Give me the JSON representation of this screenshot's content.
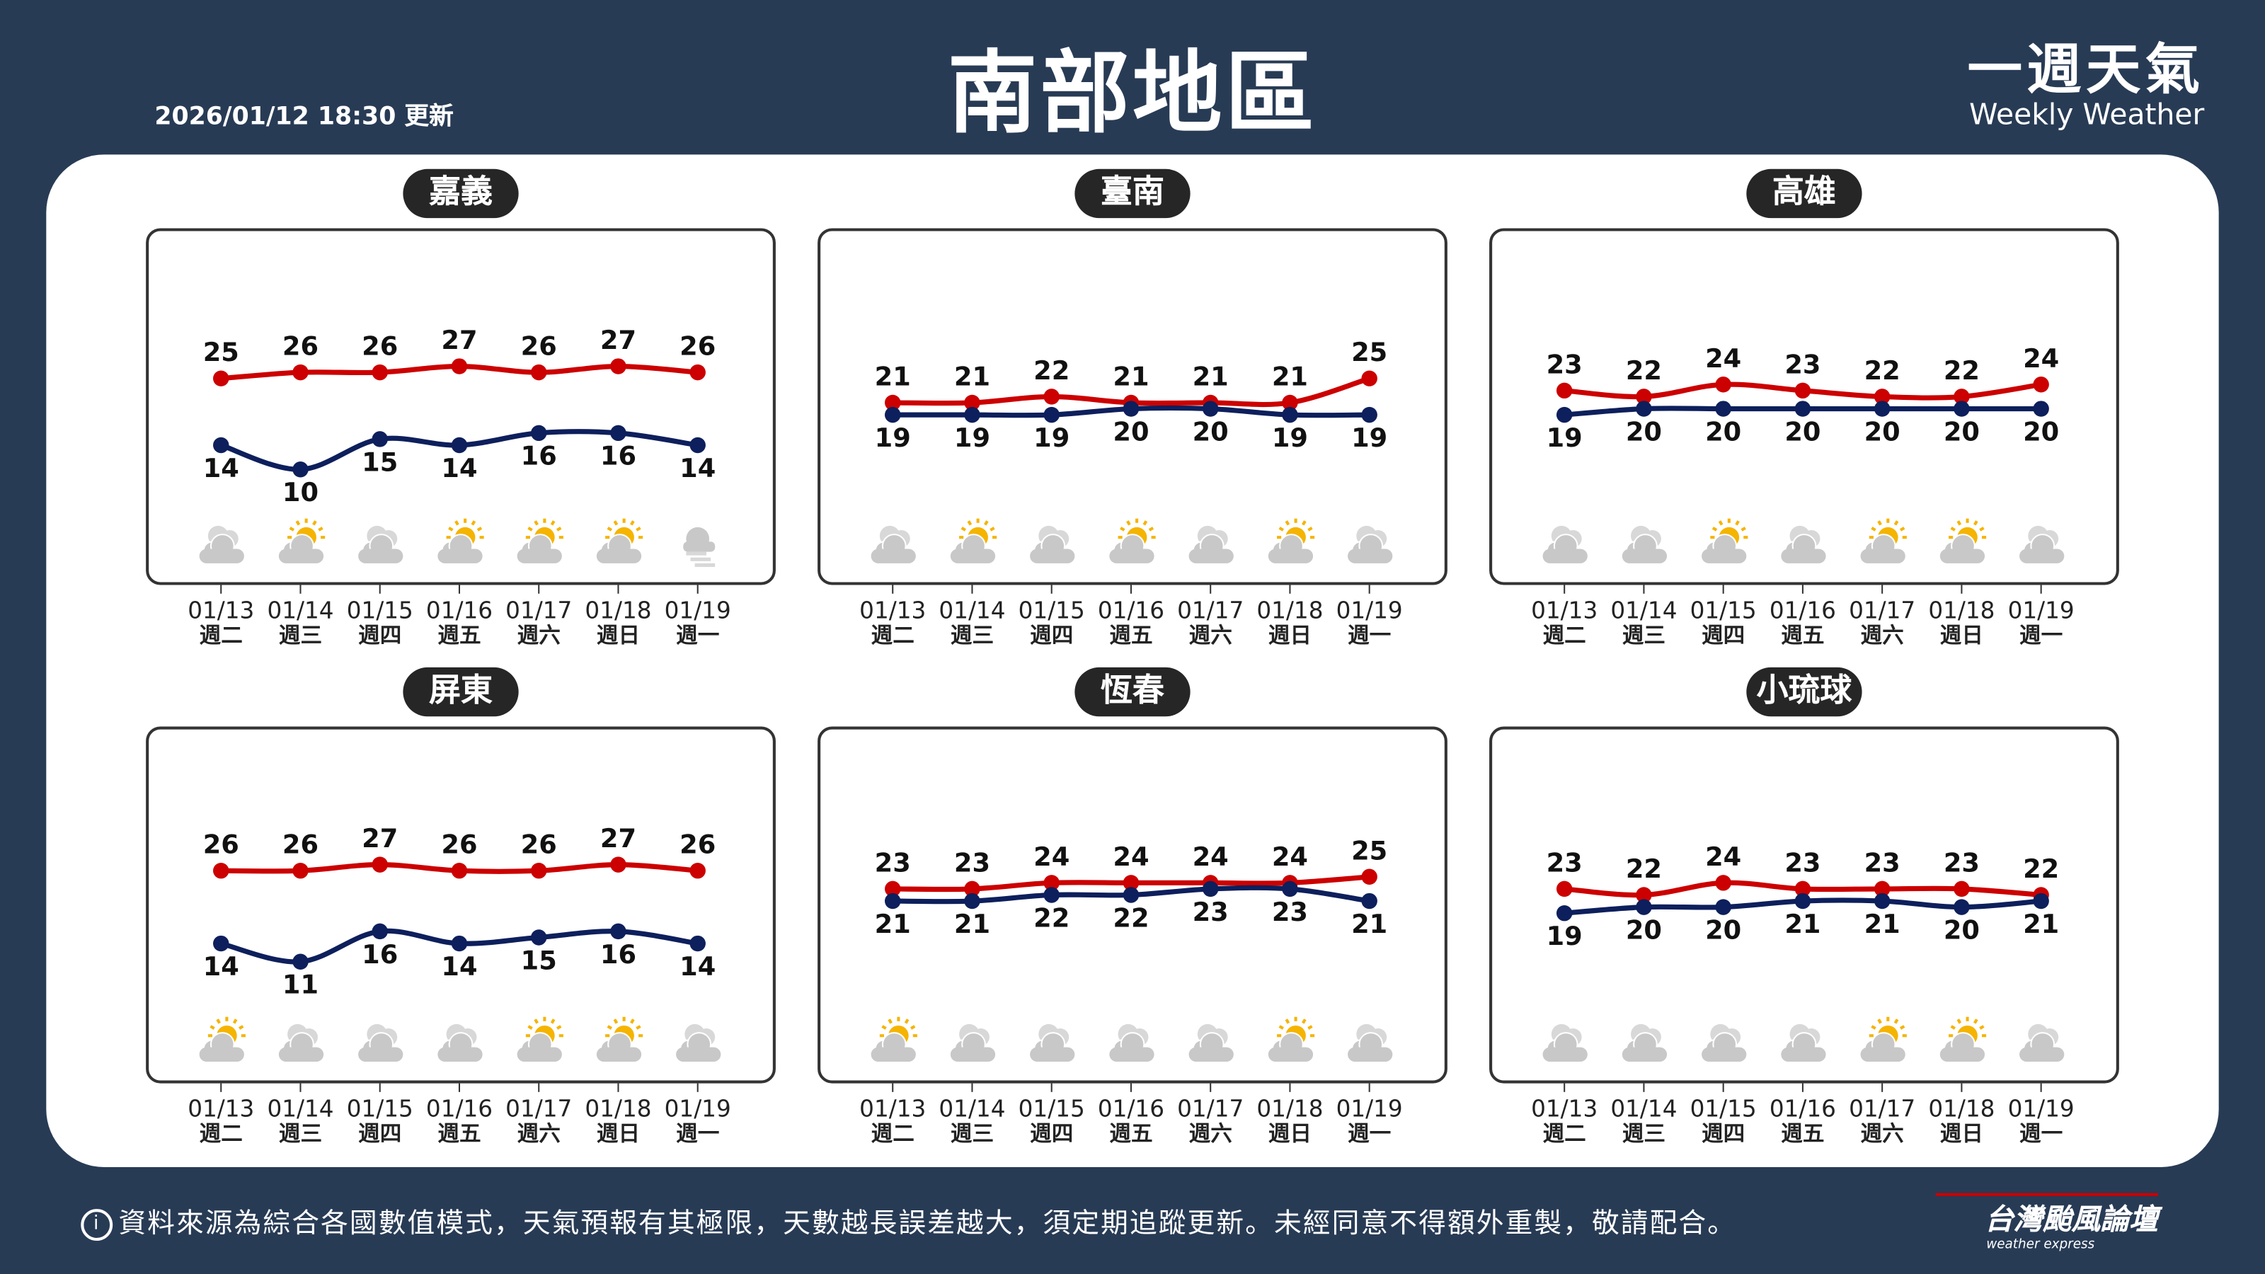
{
  "header": {
    "updated": "2026/01/12 18:30 更新",
    "title": "南部地區",
    "brand_zh": "一週天氣",
    "brand_en": "Weekly Weather"
  },
  "colors": {
    "background": "#283b55",
    "high": "#cc0000",
    "low": "#0d1f5c",
    "sun": "#f5b400",
    "cloud": "#c8c8c8"
  },
  "dates": [
    "01/13",
    "01/14",
    "01/15",
    "01/16",
    "01/17",
    "01/18",
    "01/19"
  ],
  "weekdays": [
    "週二",
    "週三",
    "週四",
    "週五",
    "週六",
    "週日",
    "週一"
  ],
  "chart_data": [
    {
      "type": "line",
      "name": "嘉義",
      "high": [
        25,
        26,
        26,
        27,
        26,
        27,
        26
      ],
      "low": [
        14,
        10,
        15,
        14,
        16,
        16,
        14
      ],
      "icons": [
        "cloudy",
        "partly-cloudy",
        "cloudy",
        "partly-cloudy",
        "partly-cloudy",
        "partly-cloudy",
        "fog"
      ]
    },
    {
      "type": "line",
      "name": "臺南",
      "high": [
        21,
        21,
        22,
        21,
        21,
        21,
        25
      ],
      "low": [
        19,
        19,
        19,
        20,
        20,
        19,
        19
      ],
      "icons": [
        "cloudy",
        "partly-cloudy",
        "cloudy",
        "partly-cloudy",
        "cloudy",
        "partly-cloudy",
        "cloudy"
      ]
    },
    {
      "type": "line",
      "name": "高雄",
      "high": [
        23,
        22,
        24,
        23,
        22,
        22,
        24
      ],
      "low": [
        19,
        20,
        20,
        20,
        20,
        20,
        20
      ],
      "icons": [
        "cloudy",
        "cloudy",
        "partly-cloudy",
        "cloudy",
        "partly-cloudy",
        "partly-cloudy",
        "cloudy"
      ]
    },
    {
      "type": "line",
      "name": "屏東",
      "high": [
        26,
        26,
        27,
        26,
        26,
        27,
        26
      ],
      "low": [
        14,
        11,
        16,
        14,
        15,
        16,
        14
      ],
      "icons": [
        "partly-cloudy",
        "cloudy",
        "cloudy",
        "cloudy",
        "partly-cloudy",
        "partly-cloudy",
        "cloudy"
      ]
    },
    {
      "type": "line",
      "name": "恆春",
      "high": [
        23,
        23,
        24,
        24,
        24,
        24,
        25
      ],
      "low": [
        21,
        21,
        22,
        22,
        23,
        23,
        21
      ],
      "icons": [
        "partly-cloudy",
        "cloudy",
        "cloudy",
        "cloudy",
        "cloudy",
        "partly-cloudy",
        "cloudy"
      ]
    },
    {
      "type": "line",
      "name": "小琉球",
      "high": [
        23,
        22,
        24,
        23,
        23,
        23,
        22
      ],
      "low": [
        19,
        20,
        20,
        21,
        21,
        20,
        21
      ],
      "icons": [
        "cloudy",
        "cloudy",
        "cloudy",
        "cloudy",
        "partly-cloudy",
        "partly-cloudy",
        "cloudy"
      ]
    }
  ],
  "footer": {
    "info_icon": "i",
    "disclaimer": "資料來源為綜合各國數值模式，天氣預報有其極限，天數越長誤差越大，須定期追蹤更新。未經同意不得額外重製，敬請配合。",
    "logo_zh": "台灣颱風論壇",
    "logo_en": "weather express"
  }
}
